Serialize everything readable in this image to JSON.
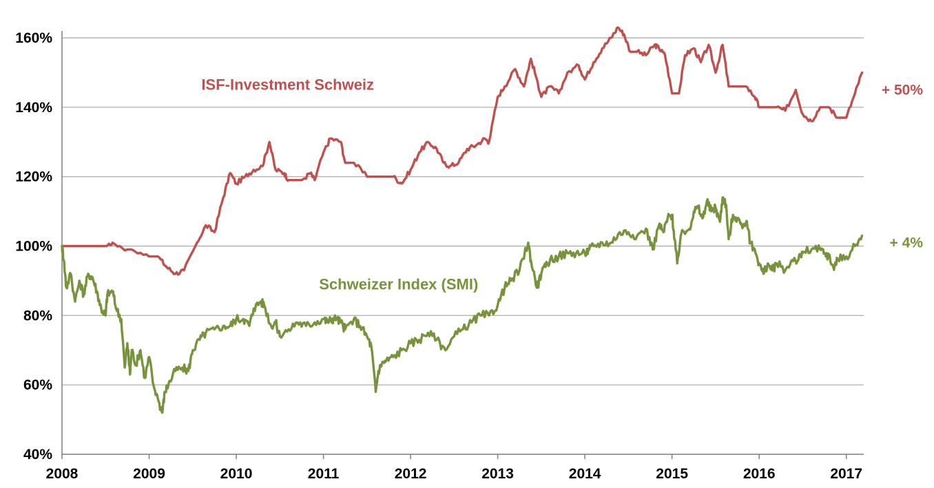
{
  "chart_data": {
    "type": "line",
    "title": "",
    "xlabel": "",
    "ylabel": "",
    "xlim": [
      2008.0,
      2017.2
    ],
    "ylim": [
      40,
      160
    ],
    "y_unit": "%",
    "x_ticks": [
      2008,
      2009,
      2010,
      2011,
      2012,
      2013,
      2014,
      2015,
      2016,
      2017
    ],
    "x_tick_labels": [
      "2008",
      "2009",
      "2010",
      "2011",
      "2012",
      "2013",
      "2014",
      "2015",
      "2016",
      "2017"
    ],
    "y_ticks": [
      40,
      60,
      80,
      100,
      120,
      140,
      160
    ],
    "y_tick_labels": [
      "40%",
      "60%",
      "80%",
      "100%",
      "120%",
      "140%",
      "160%"
    ],
    "grid": "horizontal",
    "series": [
      {
        "name": "ISF-Investment Schweiz",
        "color": "#c0504d",
        "end_label": "+ 50%",
        "x": [
          2008.0,
          2008.5,
          2008.58,
          2008.75,
          2008.8,
          2009.0,
          2009.1,
          2009.2,
          2009.3,
          2009.4,
          2009.55,
          2009.65,
          2009.75,
          2009.85,
          2009.93,
          2010.0,
          2010.1,
          2010.2,
          2010.3,
          2010.38,
          2010.45,
          2010.55,
          2010.6,
          2010.75,
          2010.85,
          2010.9,
          2011.0,
          2011.08,
          2011.2,
          2011.25,
          2011.35,
          2011.5,
          2011.7,
          2011.8,
          2011.9,
          2012.0,
          2012.1,
          2012.2,
          2012.3,
          2012.38,
          2012.45,
          2012.55,
          2012.65,
          2012.75,
          2012.85,
          2012.9,
          2013.0,
          2013.08,
          2013.2,
          2013.3,
          2013.38,
          2013.45,
          2013.5,
          2013.6,
          2013.7,
          2013.8,
          2013.93,
          2014.0,
          2014.1,
          2014.2,
          2014.3,
          2014.38,
          2014.45,
          2014.52,
          2014.6,
          2014.7,
          2014.8,
          2014.85,
          2014.92,
          2015.0,
          2015.08,
          2015.15,
          2015.25,
          2015.33,
          2015.42,
          2015.5,
          2015.58,
          2015.65,
          2015.75,
          2015.85,
          2015.95,
          2016.0,
          2016.1,
          2016.2,
          2016.3,
          2016.42,
          2016.5,
          2016.6,
          2016.7,
          2016.8,
          2016.9,
          2017.0,
          2017.1,
          2017.18
        ],
        "y": [
          100,
          100,
          101,
          99,
          99,
          97,
          97,
          94,
          92,
          93,
          101,
          106,
          104,
          114,
          121,
          118,
          120,
          122,
          123,
          130,
          122,
          121,
          119,
          119,
          121,
          119,
          127,
          131,
          130,
          124,
          124,
          120,
          120,
          120,
          118,
          122,
          127,
          130,
          128,
          124,
          123,
          124,
          128,
          129,
          131,
          130,
          143,
          146,
          151,
          146,
          154,
          148,
          143,
          146,
          144,
          150,
          152,
          148,
          153,
          157,
          160,
          163,
          161,
          156,
          156,
          155,
          158,
          157,
          155,
          144,
          144,
          155,
          157,
          153,
          158,
          150,
          158,
          146,
          146,
          146,
          143,
          140,
          140,
          140,
          139,
          145,
          138,
          136,
          140,
          140,
          137,
          137,
          144,
          150
        ]
      },
      {
        "name": "Schweizer Index (SMI)",
        "color": "#77933c",
        "end_label": "+  4%",
        "x": [
          2008.0,
          2008.02,
          2008.05,
          2008.1,
          2008.15,
          2008.2,
          2008.25,
          2008.3,
          2008.35,
          2008.4,
          2008.45,
          2008.5,
          2008.52,
          2008.58,
          2008.62,
          2008.68,
          2008.72,
          2008.75,
          2008.78,
          2008.8,
          2008.85,
          2008.9,
          2008.95,
          2009.0,
          2009.05,
          2009.1,
          2009.15,
          2009.18,
          2009.22,
          2009.3,
          2009.38,
          2009.45,
          2009.5,
          2009.58,
          2009.65,
          2009.75,
          2009.85,
          2009.93,
          2010.0,
          2010.08,
          2010.15,
          2010.2,
          2010.28,
          2010.32,
          2010.4,
          2010.45,
          2010.5,
          2010.6,
          2010.7,
          2010.8,
          2010.9,
          2011.0,
          2011.05,
          2011.1,
          2011.15,
          2011.2,
          2011.25,
          2011.35,
          2011.42,
          2011.5,
          2011.55,
          2011.6,
          2011.63,
          2011.67,
          2011.72,
          2011.8,
          2011.9,
          2012.0,
          2012.1,
          2012.2,
          2012.3,
          2012.4,
          2012.5,
          2012.6,
          2012.7,
          2012.8,
          2012.9,
          2013.0,
          2013.08,
          2013.15,
          2013.25,
          2013.35,
          2013.38,
          2013.45,
          2013.5,
          2013.55,
          2013.6,
          2013.7,
          2013.8,
          2013.9,
          2014.0,
          2014.05,
          2014.1,
          2014.2,
          2014.3,
          2014.4,
          2014.5,
          2014.6,
          2014.7,
          2014.78,
          2014.85,
          2014.9,
          2014.95,
          2015.0,
          2015.03,
          2015.06,
          2015.1,
          2015.2,
          2015.25,
          2015.3,
          2015.35,
          2015.4,
          2015.45,
          2015.5,
          2015.55,
          2015.58,
          2015.62,
          2015.65,
          2015.7,
          2015.75,
          2015.8,
          2015.85,
          2015.9,
          2015.95,
          2016.0,
          2016.05,
          2016.1,
          2016.15,
          2016.2,
          2016.3,
          2016.38,
          2016.45,
          2016.5,
          2016.6,
          2016.7,
          2016.75,
          2016.8,
          2016.85,
          2016.9,
          2017.0,
          2017.1,
          2017.18
        ],
        "y": [
          100,
          96,
          88,
          92,
          84,
          90,
          86,
          92,
          91,
          87,
          82,
          80,
          86,
          87,
          82,
          79,
          65,
          72,
          63,
          70,
          66,
          70,
          62,
          68,
          60,
          56,
          52,
          58,
          60,
          64,
          65,
          64,
          70,
          73,
          75,
          76,
          77,
          77,
          79,
          79,
          77,
          82,
          84,
          83,
          77,
          78,
          74,
          76,
          78,
          77,
          78,
          79,
          78,
          79,
          79,
          78,
          76,
          79,
          77,
          74,
          71,
          58,
          64,
          66,
          67,
          68,
          70,
          72,
          73,
          75,
          73,
          70,
          74,
          76,
          78,
          80,
          80,
          83,
          88,
          90,
          93,
          101,
          96,
          88,
          92,
          94,
          96,
          97,
          98,
          98,
          98,
          99,
          100,
          101,
          101,
          104,
          104,
          103,
          105,
          99,
          106,
          104,
          108,
          109,
          102,
          95,
          103,
          105,
          110,
          111,
          108,
          113,
          110,
          111,
          107,
          114,
          112,
          102,
          109,
          108,
          106,
          107,
          101,
          99,
          95,
          92,
          95,
          93,
          95,
          93,
          96,
          96,
          98,
          99,
          99,
          98,
          97,
          94,
          96,
          97,
          100,
          103
        ]
      }
    ],
    "annotations": [
      {
        "text": "ISF-Investment Schweiz",
        "x": 2009.6,
        "y": 145,
        "color": "#c0504d"
      },
      {
        "text": "Schweizer Index (SMI)",
        "x": 2010.95,
        "y": 87.5,
        "color": "#77933c"
      }
    ]
  }
}
